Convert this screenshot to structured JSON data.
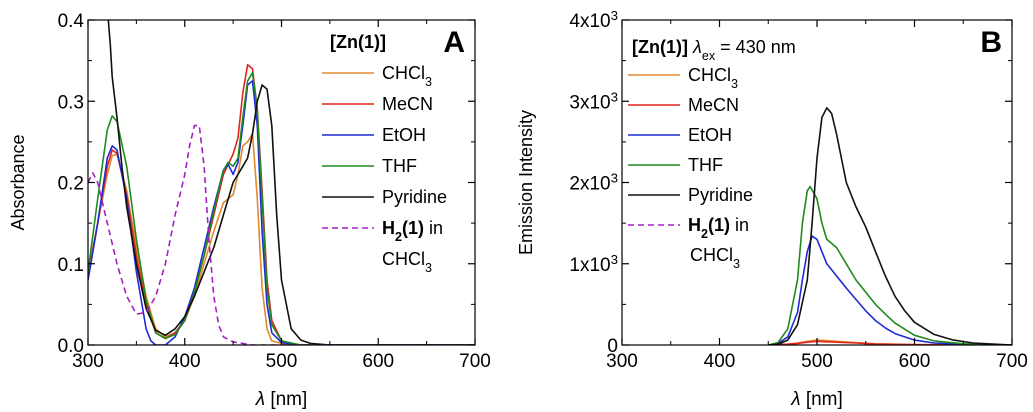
{
  "chart_data": [
    {
      "type": "line",
      "panel_letter": "A",
      "xlabel_symbol": "λ",
      "xlabel_unit": "[nm]",
      "ylabel": "Absorbance",
      "xlim": [
        300,
        700
      ],
      "ylim": [
        0,
        0.4
      ],
      "xticks": [
        300,
        400,
        500,
        600,
        700
      ],
      "yticks": [
        0.0,
        0.1,
        0.2,
        0.3,
        0.4
      ],
      "ytick_labels": [
        "0.0",
        "0.1",
        "0.2",
        "0.3",
        "0.4"
      ],
      "grid": false,
      "legend_title": "[Zn(1)]",
      "legend_position": "top-right",
      "series": [
        {
          "name": "CHCl3",
          "label_main": "CHCl",
          "label_sub": "3",
          "color": "#e08a2e",
          "dash": false,
          "x": [
            300,
            310,
            320,
            325,
            330,
            340,
            350,
            360,
            370,
            380,
            390,
            400,
            410,
            420,
            430,
            440,
            450,
            455,
            460,
            465,
            470,
            475,
            480,
            485,
            490,
            500,
            510,
            520,
            550,
            600,
            700
          ],
          "y": [
            0.09,
            0.15,
            0.21,
            0.233,
            0.235,
            0.19,
            0.12,
            0.06,
            0.02,
            0.01,
            0.015,
            0.03,
            0.06,
            0.1,
            0.14,
            0.175,
            0.185,
            0.21,
            0.245,
            0.25,
            0.26,
            0.18,
            0.07,
            0.02,
            0.005,
            0.002,
            0.0,
            0.0,
            0.0,
            0.0,
            0.0
          ]
        },
        {
          "name": "MeCN",
          "label_main": "MeCN",
          "label_sub": "",
          "color": "#e0241f",
          "dash": false,
          "x": [
            300,
            310,
            320,
            325,
            330,
            340,
            350,
            360,
            370,
            380,
            390,
            400,
            410,
            420,
            430,
            440,
            450,
            455,
            460,
            465,
            470,
            475,
            480,
            485,
            490,
            500,
            510,
            520,
            550,
            600,
            700
          ],
          "y": [
            0.08,
            0.15,
            0.22,
            0.24,
            0.236,
            0.185,
            0.11,
            0.05,
            0.015,
            0.008,
            0.015,
            0.03,
            0.065,
            0.11,
            0.16,
            0.21,
            0.235,
            0.255,
            0.31,
            0.345,
            0.34,
            0.29,
            0.19,
            0.08,
            0.03,
            0.005,
            0.002,
            0.0,
            0.0,
            0.0,
            0.0
          ]
        },
        {
          "name": "EtOH",
          "label_main": "EtOH",
          "label_sub": "",
          "color": "#1f2bd6",
          "dash": false,
          "x": [
            300,
            310,
            320,
            325,
            330,
            340,
            350,
            360,
            365,
            370,
            380,
            390,
            400,
            410,
            420,
            430,
            440,
            445,
            450,
            455,
            460,
            465,
            470,
            475,
            480,
            485,
            490,
            500,
            520,
            550,
            600,
            700
          ],
          "y": [
            0.08,
            0.15,
            0.23,
            0.245,
            0.24,
            0.18,
            0.09,
            0.02,
            0.005,
            0.0,
            0.0,
            0.01,
            0.035,
            0.07,
            0.12,
            0.17,
            0.215,
            0.222,
            0.21,
            0.225,
            0.27,
            0.32,
            0.325,
            0.27,
            0.14,
            0.05,
            0.015,
            0.003,
            0.0,
            0.0,
            0.0,
            0.0
          ]
        },
        {
          "name": "THF",
          "label_main": "THF",
          "label_sub": "",
          "color": "#1f8a1f",
          "dash": false,
          "x": [
            300,
            310,
            320,
            325,
            330,
            340,
            350,
            360,
            370,
            380,
            390,
            400,
            410,
            420,
            430,
            440,
            445,
            450,
            455,
            460,
            465,
            470,
            475,
            480,
            485,
            490,
            500,
            520,
            550,
            600,
            700
          ],
          "y": [
            0.09,
            0.18,
            0.265,
            0.282,
            0.275,
            0.22,
            0.13,
            0.055,
            0.015,
            0.008,
            0.013,
            0.03,
            0.065,
            0.11,
            0.165,
            0.215,
            0.225,
            0.22,
            0.23,
            0.28,
            0.325,
            0.335,
            0.29,
            0.18,
            0.07,
            0.025,
            0.005,
            0.0,
            0.0,
            0.0,
            0.0
          ]
        },
        {
          "name": "Pyridine",
          "label_main": "Pyridine",
          "label_sub": "",
          "color": "#111111",
          "dash": false,
          "x": [
            321,
            323,
            325,
            330,
            335,
            340,
            350,
            360,
            370,
            380,
            390,
            400,
            410,
            420,
            430,
            440,
            450,
            460,
            465,
            470,
            475,
            480,
            485,
            490,
            495,
            500,
            510,
            520,
            530,
            550,
            600,
            700
          ],
          "y": [
            0.4,
            0.37,
            0.33,
            0.28,
            0.22,
            0.17,
            0.1,
            0.045,
            0.018,
            0.012,
            0.02,
            0.035,
            0.06,
            0.09,
            0.12,
            0.16,
            0.2,
            0.22,
            0.23,
            0.26,
            0.3,
            0.32,
            0.315,
            0.27,
            0.16,
            0.08,
            0.02,
            0.006,
            0.002,
            0.0,
            0.0,
            0.0
          ]
        },
        {
          "name": "H2(1) in CHCl3",
          "label_main": "H",
          "label_sub": "2",
          "label_rest": "(1)",
          "label_after": " in",
          "label_line2": "CHCl",
          "label_line2_sub": "3",
          "color": "#a51fc5",
          "dash": true,
          "x": [
            300,
            305,
            310,
            320,
            330,
            340,
            350,
            360,
            370,
            380,
            390,
            400,
            405,
            410,
            415,
            420,
            425,
            430,
            435,
            440,
            450,
            460,
            470,
            500,
            550,
            600,
            700
          ],
          "y": [
            0.2,
            0.212,
            0.2,
            0.15,
            0.1,
            0.06,
            0.038,
            0.04,
            0.06,
            0.1,
            0.16,
            0.21,
            0.245,
            0.27,
            0.27,
            0.22,
            0.13,
            0.06,
            0.025,
            0.01,
            0.004,
            0.002,
            0.0,
            0.0,
            0.0,
            0.0,
            0.0
          ]
        }
      ]
    },
    {
      "type": "line",
      "panel_letter": "B",
      "xlabel_symbol": "λ",
      "xlabel_unit": "[nm]",
      "ylabel": "Emission Intensity",
      "xlim": [
        300,
        700
      ],
      "ylim": [
        0,
        4000
      ],
      "xticks": [
        300,
        400,
        500,
        600,
        700
      ],
      "yticks": [
        0,
        1000,
        2000,
        3000,
        4000
      ],
      "ytick_labels": [
        {
          "main": "0",
          "sup": ""
        },
        {
          "main": "1x10",
          "sup": "3"
        },
        {
          "main": "2x10",
          "sup": "3"
        },
        {
          "main": "3x10",
          "sup": "3"
        },
        {
          "main": "4x10",
          "sup": "3"
        }
      ],
      "grid": false,
      "legend_title": "[Zn(1)]",
      "legend_title_suffix_symbol": "λ",
      "legend_title_suffix_sub": "ex",
      "legend_title_suffix_text": " = 430 nm",
      "legend_position": "top-left",
      "series": [
        {
          "name": "CHCl3",
          "label_main": "CHCl",
          "label_sub": "3",
          "color": "#e08a2e",
          "dash": false,
          "x": [
            450,
            470,
            480,
            490,
            500,
            510,
            520,
            540,
            560,
            600,
            650,
            700
          ],
          "y": [
            0,
            10,
            25,
            45,
            60,
            55,
            45,
            30,
            15,
            5,
            2,
            0
          ]
        },
        {
          "name": "MeCN",
          "label_main": "MeCN",
          "label_sub": "",
          "color": "#e0241f",
          "dash": false,
          "x": [
            450,
            470,
            480,
            490,
            500,
            510,
            520,
            540,
            560,
            600,
            650,
            700
          ],
          "y": [
            0,
            10,
            20,
            35,
            45,
            40,
            35,
            25,
            12,
            4,
            1,
            0
          ]
        },
        {
          "name": "EtOH",
          "label_main": "EtOH",
          "label_sub": "",
          "color": "#1f2bd6",
          "dash": false,
          "x": [
            450,
            460,
            470,
            480,
            485,
            490,
            495,
            500,
            505,
            510,
            520,
            530,
            540,
            550,
            560,
            570,
            580,
            600,
            620,
            650,
            700
          ],
          "y": [
            0,
            20,
            100,
            400,
            800,
            1150,
            1340,
            1300,
            1150,
            1000,
            850,
            700,
            560,
            420,
            300,
            210,
            140,
            60,
            25,
            8,
            0
          ]
        },
        {
          "name": "THF",
          "label_main": "THF",
          "label_sub": "",
          "color": "#1f8a1f",
          "dash": false,
          "x": [
            450,
            460,
            470,
            480,
            485,
            490,
            493,
            500,
            505,
            510,
            520,
            530,
            540,
            550,
            560,
            570,
            580,
            600,
            620,
            650,
            700
          ],
          "y": [
            0,
            30,
            200,
            800,
            1500,
            1900,
            1950,
            1800,
            1500,
            1300,
            1200,
            1000,
            800,
            650,
            500,
            380,
            270,
            120,
            50,
            15,
            0
          ]
        },
        {
          "name": "Pyridine",
          "label_main": "Pyridine",
          "label_sub": "",
          "color": "#111111",
          "dash": false,
          "x": [
            450,
            460,
            470,
            480,
            490,
            495,
            500,
            505,
            510,
            515,
            520,
            530,
            540,
            550,
            560,
            570,
            580,
            590,
            600,
            620,
            640,
            660,
            700
          ],
          "y": [
            0,
            10,
            60,
            250,
            800,
            1500,
            2300,
            2800,
            2920,
            2850,
            2600,
            2000,
            1700,
            1450,
            1150,
            850,
            600,
            420,
            280,
            130,
            60,
            25,
            0
          ]
        },
        {
          "name": "H2(1) in CHCl3",
          "label_main": "H",
          "label_sub": "2",
          "label_rest": "(1)",
          "label_after": " in",
          "label_line2": "CHCl",
          "label_line2_sub": "3",
          "color": "#a51fc5",
          "dash": true,
          "x": [],
          "y": []
        }
      ]
    }
  ]
}
